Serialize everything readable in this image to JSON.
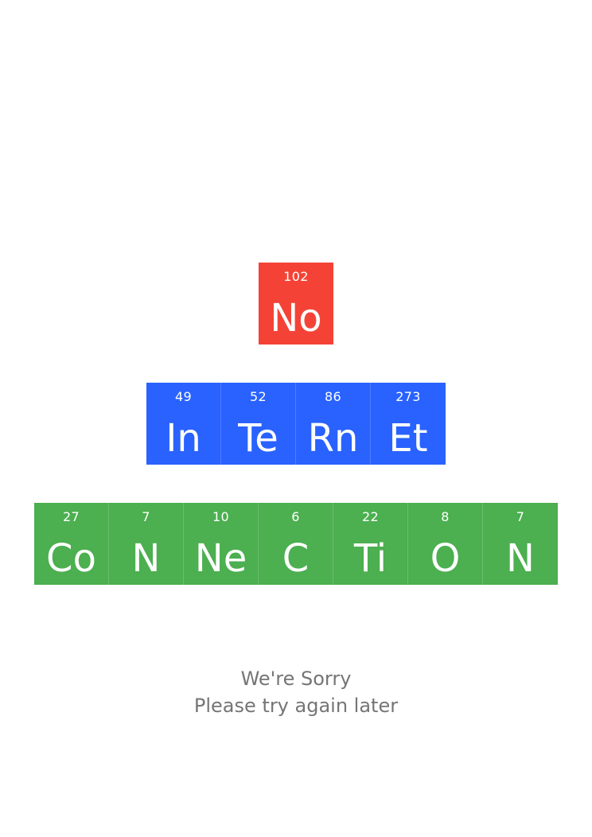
{
  "colors": {
    "red": "#f44336",
    "blue": "#2962ff",
    "green": "#4caf50",
    "message_text": "#757575"
  },
  "rows": [
    {
      "color": "#f44336",
      "tiles": [
        {
          "number": "102",
          "symbol": "No"
        }
      ]
    },
    {
      "color": "#2962ff",
      "tiles": [
        {
          "number": "49",
          "symbol": "In"
        },
        {
          "number": "52",
          "symbol": "Te"
        },
        {
          "number": "86",
          "symbol": "Rn"
        },
        {
          "number": "273",
          "symbol": "Et"
        }
      ]
    },
    {
      "color": "#4caf50",
      "tiles": [
        {
          "number": "27",
          "symbol": "Co"
        },
        {
          "number": "7",
          "symbol": "N"
        },
        {
          "number": "10",
          "symbol": "Ne"
        },
        {
          "number": "6",
          "symbol": "C"
        },
        {
          "number": "22",
          "symbol": "Ti"
        },
        {
          "number": "8",
          "symbol": "O"
        },
        {
          "number": "7",
          "symbol": "N"
        }
      ]
    }
  ],
  "message": {
    "line1": "We're Sorry",
    "line2": "Please try again later"
  }
}
